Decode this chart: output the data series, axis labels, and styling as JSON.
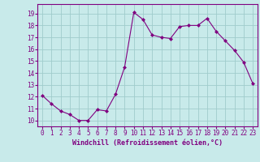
{
  "x": [
    0,
    1,
    2,
    3,
    4,
    5,
    6,
    7,
    8,
    9,
    10,
    11,
    12,
    13,
    14,
    15,
    16,
    17,
    18,
    19,
    20,
    21,
    22,
    23
  ],
  "y": [
    12.1,
    11.4,
    10.8,
    10.5,
    10.0,
    10.0,
    10.9,
    10.8,
    12.2,
    14.5,
    19.1,
    18.5,
    17.2,
    17.0,
    16.9,
    17.9,
    18.0,
    18.0,
    18.6,
    17.5,
    16.7,
    15.9,
    14.9,
    13.1
  ],
  "line_color": "#800080",
  "marker": "D",
  "marker_size": 2,
  "bg_color": "#c8eaea",
  "grid_color": "#a0cccc",
  "xlabel": "Windchill (Refroidissement éolien,°C)",
  "xlabel_color": "#800080",
  "ylabel_ticks": [
    10,
    11,
    12,
    13,
    14,
    15,
    16,
    17,
    18,
    19
  ],
  "xlim": [
    -0.5,
    23.5
  ],
  "ylim": [
    9.5,
    19.8
  ],
  "tick_fontsize": 5.5,
  "xlabel_fontsize": 6.0
}
